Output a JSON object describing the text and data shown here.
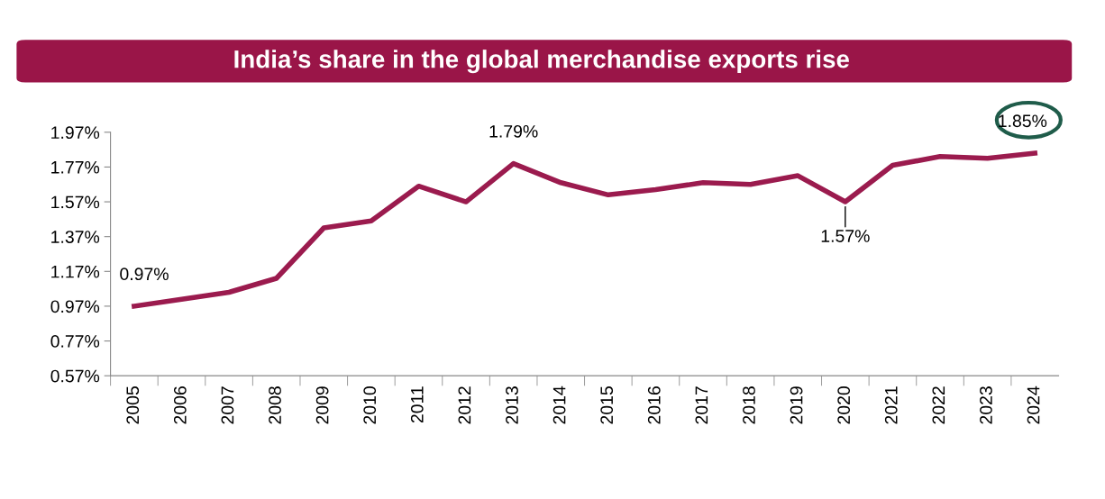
{
  "chart_data": {
    "type": "line",
    "title": "India’s share in the global merchandise exports rise",
    "categories": [
      "2005",
      "2006",
      "2007",
      "2008",
      "2009",
      "2010",
      "2011",
      "2012",
      "2013",
      "2014",
      "2015",
      "2016",
      "2017",
      "2018",
      "2019",
      "2020",
      "2021",
      "2022",
      "2023",
      "2024"
    ],
    "series": [
      {
        "color": "#9b1b4e",
        "values": [
          0.97,
          1.01,
          1.05,
          1.13,
          1.42,
          1.46,
          1.66,
          1.57,
          1.79,
          1.68,
          1.61,
          1.64,
          1.68,
          1.67,
          1.72,
          1.57,
          1.78,
          1.83,
          1.82,
          1.85
        ],
        "value_labels": [
          "0.97%",
          null,
          null,
          null,
          null,
          null,
          null,
          null,
          "1.79%",
          null,
          null,
          null,
          null,
          null,
          null,
          "1.57%",
          null,
          null,
          null,
          "1.85%"
        ]
      }
    ],
    "ylim": [
      0.57,
      1.97
    ],
    "yticks": [
      {
        "value": 0.57,
        "label": "0.57%"
      },
      {
        "value": 0.77,
        "label": "0.77%"
      },
      {
        "value": 0.97,
        "label": "0.97%"
      },
      {
        "value": 1.17,
        "label": "1.17%"
      },
      {
        "value": 1.37,
        "label": "1.37%"
      },
      {
        "value": 1.57,
        "label": "1.57%"
      },
      {
        "value": 1.77,
        "label": "1.77%"
      },
      {
        "value": 1.97,
        "label": "1.97%"
      }
    ],
    "grid": false,
    "marker": "none",
    "line_style": "solid"
  }
}
